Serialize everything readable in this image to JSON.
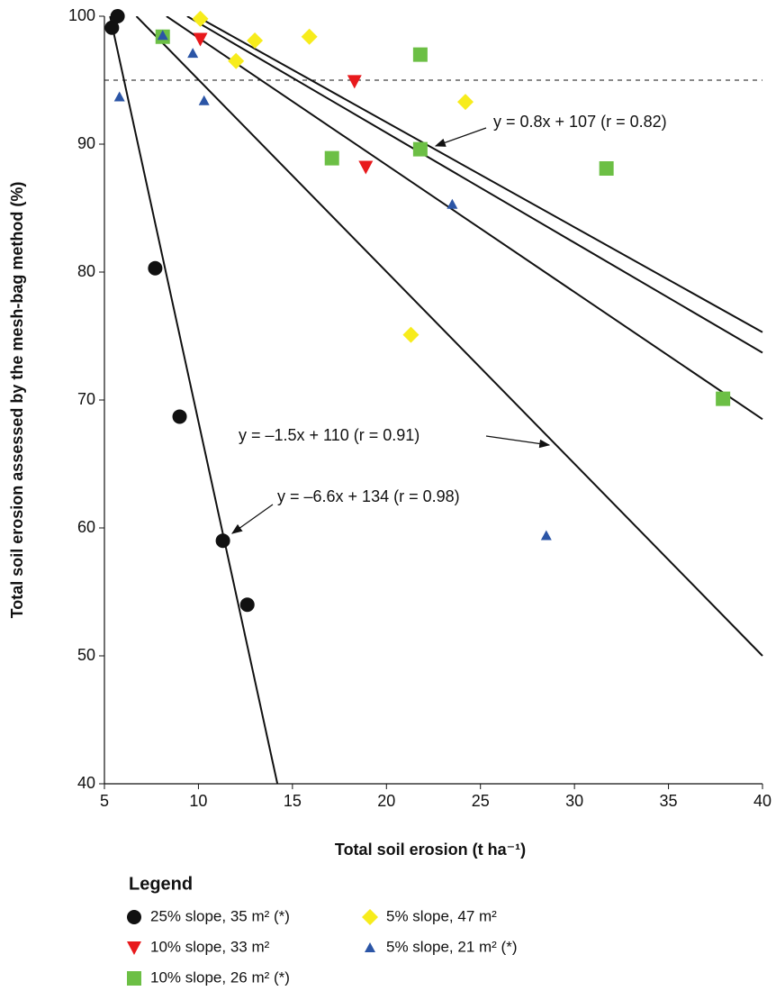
{
  "chart_data": {
    "type": "scatter",
    "xlabel": "Total soil erosion (t ha⁻¹)",
    "ylabel": "Total soil erosion assessed by the mesh-bag method (%)",
    "xlim": [
      5,
      40
    ],
    "ylim": [
      40,
      100
    ],
    "xticks": [
      5,
      10,
      15,
      20,
      25,
      30,
      35,
      40
    ],
    "yticks": [
      40,
      50,
      60,
      70,
      80,
      90,
      100
    ],
    "reference_line": 95,
    "legend_title": "Legend",
    "series": [
      {
        "name": "25% slope, 35 m² (*)",
        "color": "#111111",
        "marker": "circle",
        "x": [
          5.4,
          5.7,
          7.7,
          9.0,
          11.3,
          12.6
        ],
        "values": [
          99.1,
          100,
          80.3,
          68.7,
          59.0,
          54.0
        ]
      },
      {
        "name": "10% slope, 33 m²",
        "color": "#e8191c",
        "marker": "triangle-down",
        "x": [
          10.1,
          18.3,
          18.9
        ],
        "values": [
          98.2,
          94.9,
          88.2
        ]
      },
      {
        "name": "10% slope, 26 m² (*)",
        "color": "#6cbf45",
        "marker": "square",
        "x": [
          8.1,
          21.8,
          17.1,
          21.8,
          31.7,
          37.9
        ],
        "values": [
          98.4,
          97.0,
          88.9,
          89.6,
          88.1,
          70.1
        ]
      },
      {
        "name": "5% slope, 47 m²",
        "color": "#f7ec1c",
        "marker": "diamond",
        "x": [
          10.1,
          12.0,
          13.0,
          15.9,
          24.2,
          21.3
        ],
        "values": [
          99.8,
          96.5,
          98.1,
          98.4,
          93.3,
          75.1
        ]
      },
      {
        "name": "5% slope, 21 m² (*)",
        "color": "#2b55a6",
        "marker": "triangle-up",
        "x": [
          5.8,
          8.1,
          9.7,
          10.3,
          23.5,
          28.5
        ],
        "values": [
          93.7,
          98.5,
          97.1,
          93.4,
          85.3,
          59.4
        ]
      }
    ],
    "fit_lines": [
      {
        "x": [
          5.3,
          14.2
        ],
        "values": [
          100,
          40
        ]
      },
      {
        "x": [
          6.7,
          40
        ],
        "values": [
          100,
          50
        ]
      },
      {
        "x": [
          8.3,
          40
        ],
        "values": [
          100,
          68.5
        ]
      },
      {
        "x": [
          9.4,
          40
        ],
        "values": [
          100,
          73.7
        ]
      },
      {
        "x": [
          9.9,
          40
        ],
        "values": [
          100,
          75.3
        ]
      }
    ],
    "annotations": [
      "y = 0.8x + 107 (r = 0.82)",
      "y = –1.5x + 110 (r = 0.91)",
      "y = –6.6x + 134 (r = 0.98)"
    ]
  }
}
